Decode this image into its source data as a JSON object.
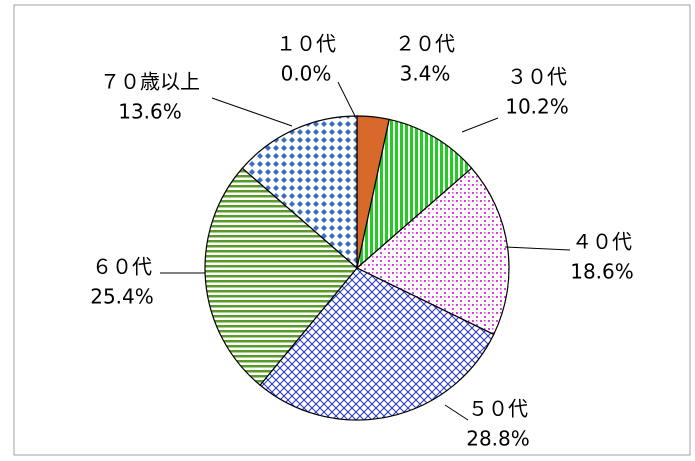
{
  "chart_data": {
    "type": "pie",
    "categories": [
      "１０代",
      "２０代",
      "３０代",
      "４０代",
      "５０代",
      "６０代",
      "７０歳以上"
    ],
    "values": [
      0.0,
      3.4,
      10.2,
      18.6,
      28.8,
      25.4,
      13.6
    ],
    "value_labels": [
      "0.0%",
      "3.4%",
      "10.2%",
      "18.6%",
      "28.8%",
      "25.4%",
      "13.6%"
    ],
    "colors": [
      "#4a7ebb",
      "#d9692a",
      "#22cc22",
      "#e040e0",
      "#2233cc",
      "#5a9a2a",
      "#3a6fc4"
    ]
  }
}
